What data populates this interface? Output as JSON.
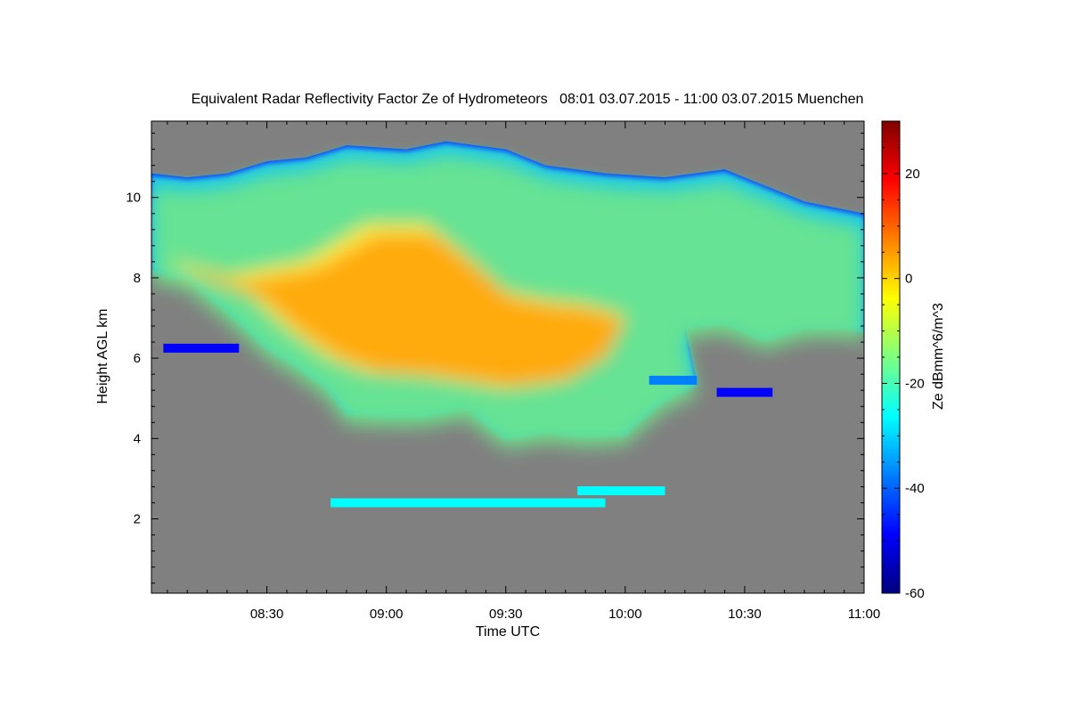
{
  "chart_data": {
    "type": "heatmap",
    "title": "Equivalent Radar Reflectivity Factor Ze of Hydrometeors   08:01 03.07.2015 - 11:00 03.07.2015 Muenchen",
    "xlabel": "Time UTC",
    "ylabel": "Height AGL km",
    "x_range": [
      "08:01",
      "11:00"
    ],
    "x_ticks": [
      "08:30",
      "09:00",
      "09:30",
      "10:00",
      "10:30",
      "11:00"
    ],
    "ylim": [
      0.15,
      11.9
    ],
    "y_ticks": [
      2,
      4,
      6,
      8,
      10
    ],
    "colorbar": {
      "label": "Ze dBmm^6/m^3",
      "range": [
        -60,
        30
      ],
      "ticks": [
        20,
        0,
        -20,
        -40,
        -60
      ]
    },
    "colors": {
      "background": "#808080",
      "scale": [
        "#00007f",
        "#0000ff",
        "#007fff",
        "#00ffff",
        "#7fff7f",
        "#ffff00",
        "#ff7f00",
        "#ff0000",
        "#7f0000"
      ]
    },
    "cloud_upper_boundary": [
      [
        "08:01",
        10.6
      ],
      [
        "08:10",
        10.5
      ],
      [
        "08:20",
        10.6
      ],
      [
        "08:30",
        10.9
      ],
      [
        "08:40",
        11.0
      ],
      [
        "08:50",
        11.3
      ],
      [
        "09:05",
        11.2
      ],
      [
        "09:15",
        11.4
      ],
      [
        "09:30",
        11.2
      ],
      [
        "09:40",
        10.8
      ],
      [
        "09:55",
        10.6
      ],
      [
        "10:10",
        10.5
      ],
      [
        "10:25",
        10.7
      ],
      [
        "10:35",
        10.3
      ],
      [
        "10:45",
        9.9
      ],
      [
        "10:55",
        9.7
      ],
      [
        "11:00",
        9.6
      ]
    ],
    "cloud_lower_boundary": [
      [
        "08:01",
        8.2
      ],
      [
        "08:10",
        8.0
      ],
      [
        "08:20",
        7.2
      ],
      [
        "08:30",
        6.3
      ],
      [
        "08:38",
        5.8
      ],
      [
        "08:45",
        5.3
      ],
      [
        "08:50",
        4.65
      ],
      [
        "09:00",
        4.6
      ],
      [
        "09:10",
        4.6
      ],
      [
        "09:20",
        4.8
      ],
      [
        "09:25",
        4.4
      ],
      [
        "09:30",
        4.05
      ],
      [
        "09:40",
        4.2
      ],
      [
        "09:50",
        4.1
      ],
      [
        "10:00",
        4.15
      ],
      [
        "10:05",
        4.6
      ],
      [
        "10:10",
        5.0
      ],
      [
        "10:18",
        5.4
      ],
      [
        "10:15",
        6.8
      ],
      [
        "10:25",
        6.9
      ],
      [
        "10:35",
        6.5
      ],
      [
        "10:45",
        6.8
      ],
      [
        "10:55",
        6.8
      ],
      [
        "11:00",
        6.7
      ]
    ],
    "cloud_core_boundary": [
      [
        "08:05",
        8.0
      ],
      [
        "08:20",
        7.6
      ],
      [
        "08:40",
        8.0
      ],
      [
        "08:55",
        8.9
      ],
      [
        "09:10",
        8.9
      ],
      [
        "09:20",
        8.1
      ],
      [
        "09:30",
        7.2
      ],
      [
        "09:40",
        7.0
      ],
      [
        "09:50",
        6.9
      ],
      [
        "10:00",
        6.6
      ],
      [
        "09:55",
        5.6
      ],
      [
        "09:45",
        5.0
      ],
      [
        "09:30",
        4.8
      ],
      [
        "09:10",
        5.1
      ],
      [
        "08:55",
        5.2
      ],
      [
        "08:45",
        5.6
      ],
      [
        "08:35",
        6.3
      ],
      [
        "08:25",
        7.2
      ],
      [
        "08:10",
        7.7
      ]
    ],
    "echo_layers": [
      {
        "x": [
          "08:04",
          "08:23"
        ],
        "y": 6.25,
        "value": -45
      },
      {
        "x": [
          "10:23",
          "10:37"
        ],
        "y": 5.15,
        "value": -45
      },
      {
        "x": [
          "10:06",
          "10:18"
        ],
        "y": 5.45,
        "value": -40
      },
      {
        "x": [
          "08:46",
          "09:55"
        ],
        "y": 2.4,
        "value": -25
      },
      {
        "x": [
          "09:48",
          "10:10"
        ],
        "y": 2.7,
        "value": -30
      }
    ]
  }
}
